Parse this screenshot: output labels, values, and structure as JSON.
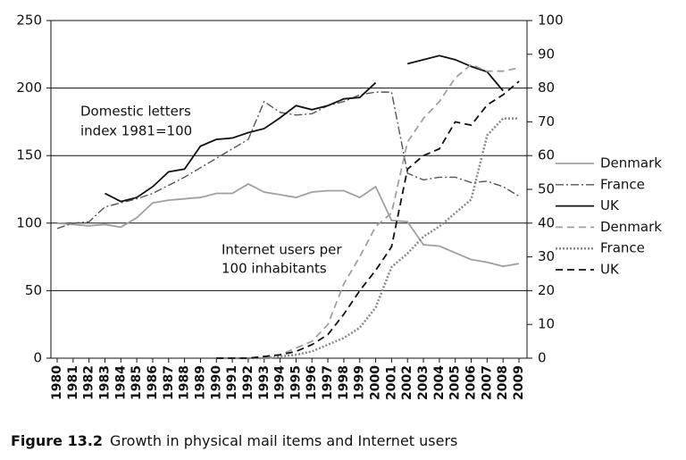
{
  "chart_data": {
    "type": "line",
    "caption": {
      "label": "Figure 13.2",
      "text": "Growth in physical mail items and Internet users"
    },
    "annotations": [
      "Domestic letters",
      "index 1981=100",
      "Internet users per",
      "100 inhabitants"
    ],
    "categories": [
      "1980",
      "1981",
      "1982",
      "1983",
      "1984",
      "1985",
      "1986",
      "1987",
      "1988",
      "1989",
      "1990",
      "1991",
      "1992",
      "1993",
      "1994",
      "1995",
      "1996",
      "1997",
      "1998",
      "1999",
      "2000",
      "2001",
      "2002",
      "2003",
      "2004",
      "2005",
      "2006",
      "2007",
      "2008",
      "2009"
    ],
    "ylim": [
      0,
      250
    ],
    "yticks": [
      0,
      50,
      100,
      150,
      200,
      250
    ],
    "y2lim": [
      0,
      100
    ],
    "y2ticks": [
      0,
      10,
      20,
      30,
      40,
      50,
      60,
      70,
      80,
      90,
      100
    ],
    "grid": true,
    "series": [
      {
        "name": "Denmark",
        "color": "#a0a0a0",
        "linestyle": "solid",
        "axis": "y",
        "values": [
          100,
          99,
          98,
          99,
          97,
          104,
          115,
          117,
          118,
          119,
          122,
          122,
          129,
          123,
          121,
          119,
          123,
          124,
          124,
          119,
          127,
          102,
          101,
          84,
          83,
          78,
          73,
          71,
          68,
          70
        ]
      },
      {
        "name": "France",
        "color": "#555555",
        "linestyle": "dashdot",
        "axis": "y",
        "values": [
          96,
          100,
          101,
          112,
          115,
          118,
          122,
          128,
          134,
          141,
          148,
          155,
          162,
          190,
          182,
          180,
          181,
          187,
          190,
          195,
          197,
          197,
          137,
          132,
          134,
          134,
          130,
          131,
          127,
          120
        ]
      },
      {
        "name": "UK",
        "color": "#111111",
        "linestyle": "solid",
        "axis": "y",
        "values": [
          null,
          null,
          null,
          122,
          116,
          119,
          127,
          138,
          140,
          157,
          162,
          163,
          167,
          170,
          178,
          187,
          184,
          187,
          192,
          193,
          204,
          null,
          218,
          221,
          224,
          221,
          216,
          212,
          198,
          null
        ]
      },
      {
        "name": "Denmark",
        "color": "#a0a0a0",
        "linestyle": "dashed",
        "axis": "y2",
        "values": [
          null,
          null,
          null,
          null,
          null,
          null,
          null,
          null,
          null,
          null,
          0,
          0,
          0,
          0.5,
          1,
          3,
          5,
          10,
          22,
          30,
          39,
          43,
          64,
          71,
          76,
          83,
          87,
          85,
          85,
          86
        ]
      },
      {
        "name": "France",
        "color": "#888888",
        "linestyle": "dotted",
        "axis": "y2",
        "values": [
          null,
          null,
          null,
          null,
          null,
          null,
          null,
          null,
          null,
          null,
          0,
          0,
          0,
          0,
          0.5,
          1,
          2,
          4,
          6,
          9,
          15,
          27,
          31,
          36,
          39,
          43,
          47,
          66,
          71,
          71
        ]
      },
      {
        "name": "UK",
        "color": "#111111",
        "linestyle": "dashed",
        "axis": "y2",
        "values": [
          null,
          null,
          null,
          null,
          null,
          null,
          null,
          null,
          null,
          null,
          0,
          0,
          0,
          0.5,
          1,
          2,
          4,
          7,
          13,
          20,
          26,
          33,
          56,
          60,
          62,
          70,
          69,
          75,
          78,
          82
        ]
      }
    ]
  }
}
